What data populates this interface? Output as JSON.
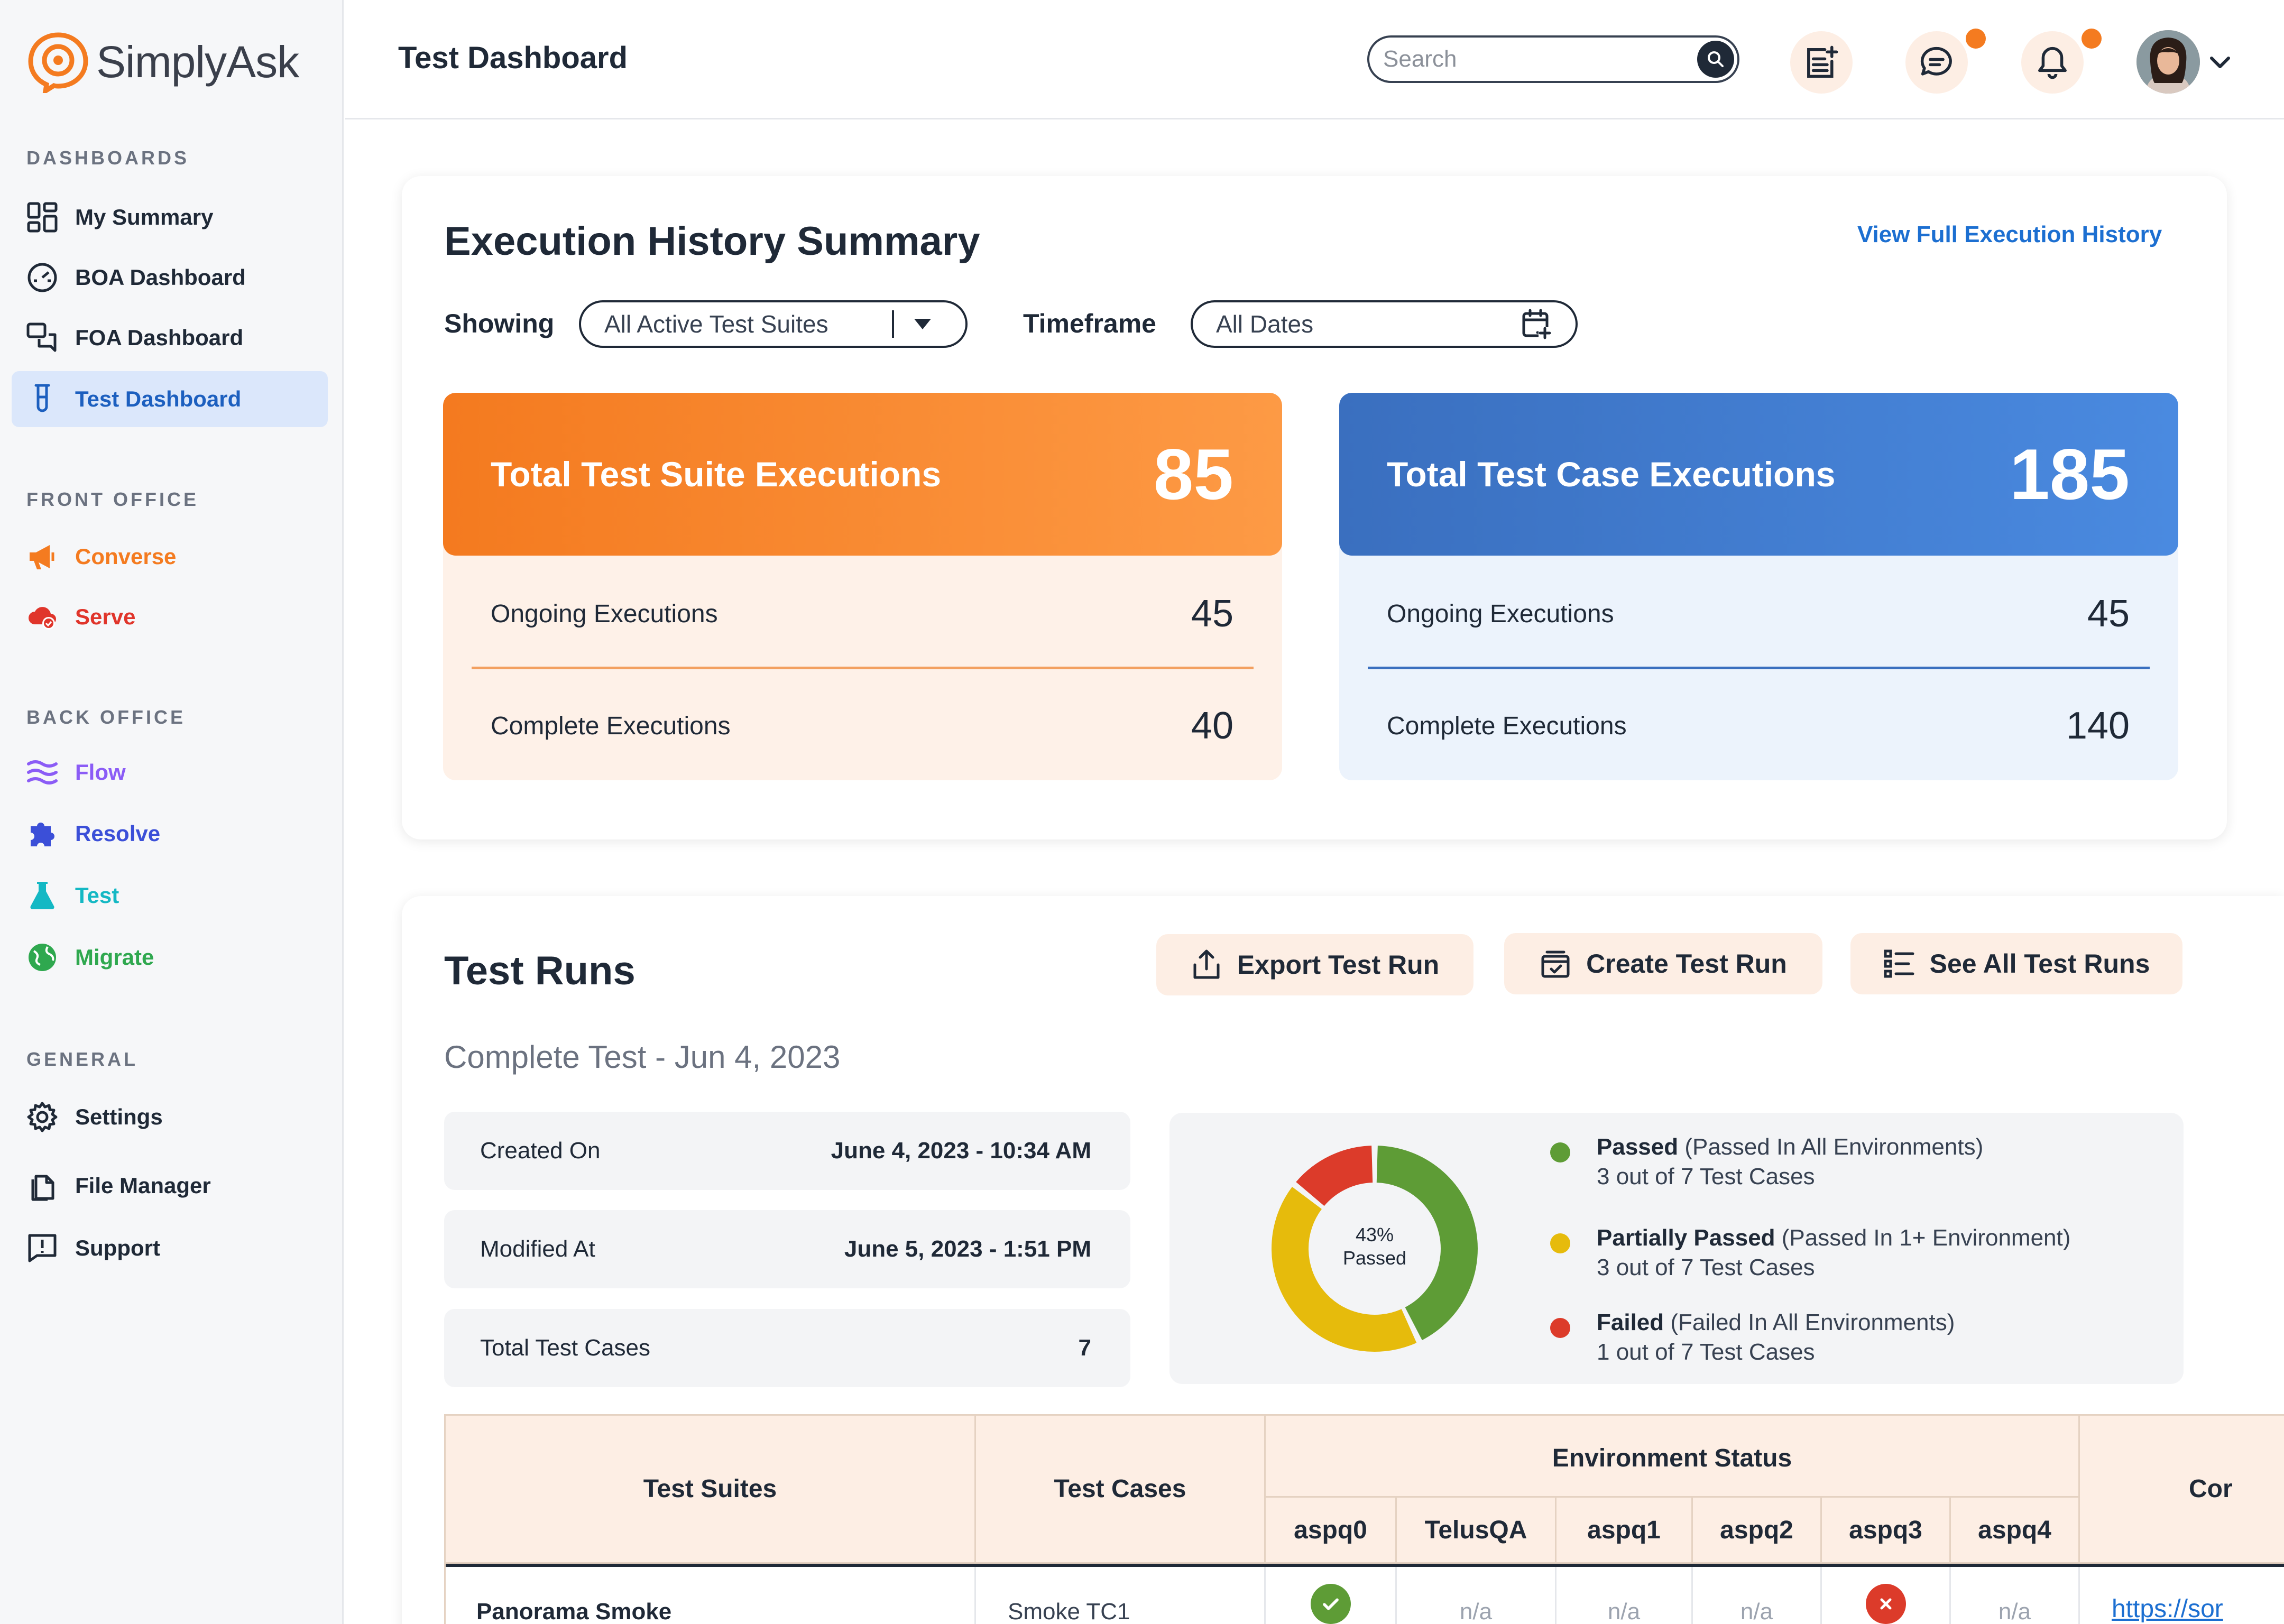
{
  "app": {
    "name": "SimplyAsk"
  },
  "sidebar": {
    "sections": [
      {
        "title": "DASHBOARDS"
      },
      {
        "title": "FRONT OFFICE"
      },
      {
        "title": "BACK OFFICE"
      },
      {
        "title": "GENERAL"
      }
    ],
    "items": [
      {
        "label": "My Summary",
        "color": "#1f2937"
      },
      {
        "label": "BOA Dashboard",
        "color": "#1f2937"
      },
      {
        "label": "FOA Dashboard",
        "color": "#1f2937"
      },
      {
        "label": "Test Dashboard",
        "color": "#1c5fbf"
      },
      {
        "label": "Converse",
        "color": "#f47b20"
      },
      {
        "label": "Serve",
        "color": "#e0352b"
      },
      {
        "label": "Flow",
        "color": "#8b5cf6"
      },
      {
        "label": "Resolve",
        "color": "#3b4fd8"
      },
      {
        "label": "Test",
        "color": "#14b8c4"
      },
      {
        "label": "Migrate",
        "color": "#2fa84f"
      },
      {
        "label": "Settings",
        "color": "#1f2937"
      },
      {
        "label": "File Manager",
        "color": "#1f2937"
      },
      {
        "label": "Support",
        "color": "#1f2937"
      }
    ]
  },
  "header": {
    "title": "Test Dashboard",
    "search_placeholder": "Search"
  },
  "summary": {
    "title": "Execution History Summary",
    "link": "View Full Execution History",
    "showing_label": "Showing",
    "showing_value": "All Active Test Suites",
    "timeframe_label": "Timeframe",
    "timeframe_value": "All Dates",
    "suite": {
      "title": "Total Test Suite Executions",
      "total": "85",
      "ongoing_label": "Ongoing Executions",
      "ongoing": "45",
      "complete_label": "Complete Executions",
      "complete": "40"
    },
    "cases": {
      "title": "Total Test Case Executions",
      "total": "185",
      "ongoing_label": "Ongoing Executions",
      "ongoing": "45",
      "complete_label": "Complete Executions",
      "complete": "140"
    }
  },
  "runs": {
    "title": "Test Runs",
    "buttons": {
      "export": "Export Test Run",
      "create": "Create Test Run",
      "see_all": "See All Test Runs"
    },
    "subtitle": "Complete Test - Jun 4, 2023",
    "info": [
      {
        "key": "Created On",
        "value": "June 4, 2023 - 10:34 AM"
      },
      {
        "key": "Modified At",
        "value": "June 5, 2023 - 1:51 PM"
      },
      {
        "key": "Total Test Cases",
        "value": "7"
      }
    ],
    "donut": {
      "center_pct": "43%",
      "center_label": "Passed",
      "segments": [
        {
          "value": 3,
          "color": "#5e9c36"
        },
        {
          "value": 3,
          "color": "#e6bb0c"
        },
        {
          "value": 1,
          "color": "#dc3b2a"
        }
      ]
    },
    "legend": [
      {
        "label": "Passed",
        "detail": "(Passed In All Environments)",
        "count": "3 out of 7 Test Cases",
        "color": "#5e9c36"
      },
      {
        "label": "Partially Passed",
        "detail": "(Passed In 1+ Environment)",
        "count": "3 out of 7 Test Cases",
        "color": "#e6bb0c"
      },
      {
        "label": "Failed",
        "detail": "(Failed In All Environments)",
        "count": "1 out of 7 Test Cases",
        "color": "#dc3b2a"
      }
    ],
    "table": {
      "headers": {
        "suites": "Test Suites",
        "cases": "Test Cases",
        "env": "Environment Status",
        "last": "Cor"
      },
      "envs": [
        "aspq0",
        "TelusQA",
        "aspq1",
        "aspq2",
        "aspq3",
        "aspq4"
      ],
      "row": {
        "suite": "Panorama Smoke",
        "case": "Smoke TC1",
        "na": "n/a",
        "link": "https://sor"
      }
    }
  }
}
